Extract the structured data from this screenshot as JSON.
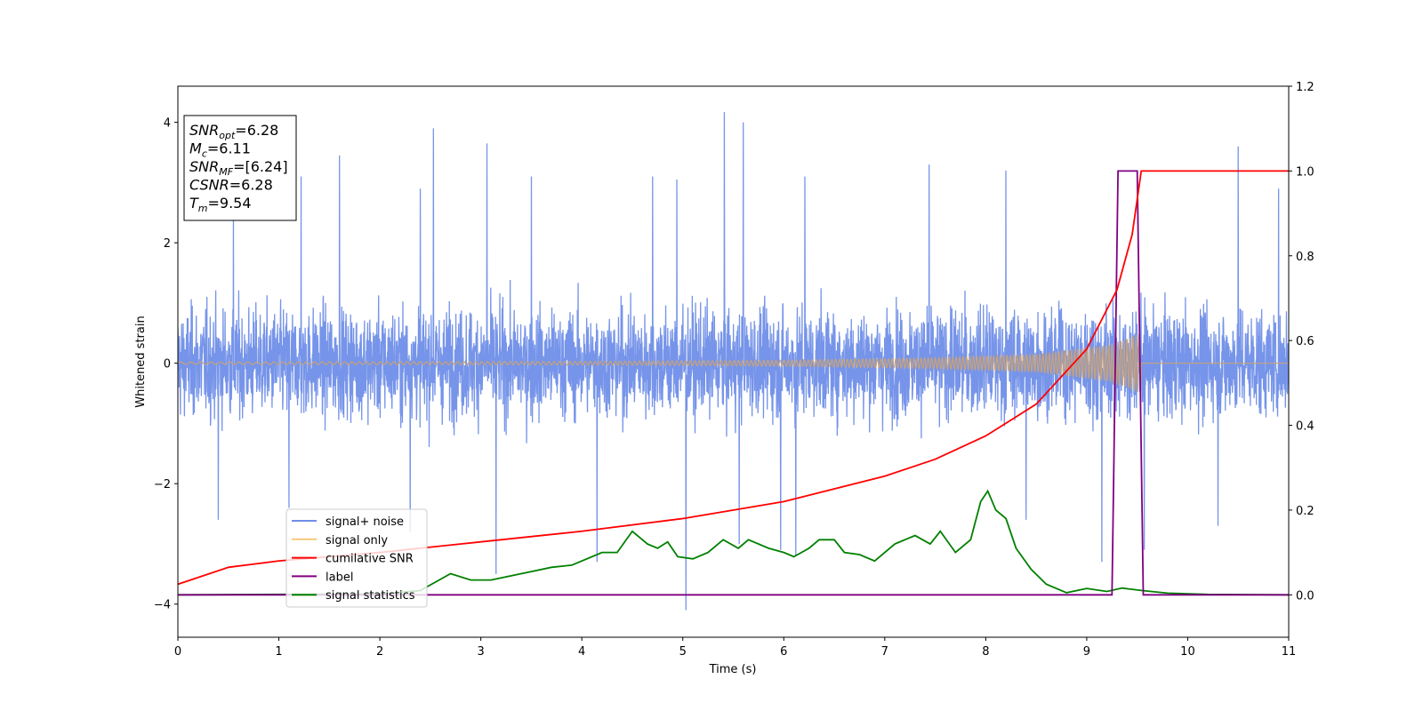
{
  "chart_data": {
    "type": "line",
    "xlabel": "Time (s)",
    "ylabel": "Whitened strain",
    "xlim": [
      0,
      11
    ],
    "ylim_left": [
      -4.55,
      4.6
    ],
    "ylim_right": [
      -0.1,
      1.2
    ],
    "x_ticks": [
      "0",
      "1",
      "2",
      "3",
      "4",
      "5",
      "6",
      "7",
      "8",
      "9",
      "10",
      "11"
    ],
    "y_ticks_left": [
      "−4",
      "−2",
      "0",
      "2",
      "4"
    ],
    "y_ticks_left_values": [
      -4,
      -2,
      0,
      2,
      4
    ],
    "y_ticks_right": [
      "0.0",
      "0.2",
      "0.4",
      "0.6",
      "0.8",
      "1.0",
      "1.2"
    ],
    "y_ticks_right_values": [
      0.0,
      0.2,
      0.4,
      0.6,
      0.8,
      1.0,
      1.2
    ],
    "info_box": {
      "lines": [
        {
          "sym": "SNR",
          "sub": "opt",
          "val": "=6.28"
        },
        {
          "sym": "M",
          "sub": "c",
          "val": "=6.11"
        },
        {
          "sym": "SNR",
          "sub": "MF",
          "val": "=[6.24]"
        },
        {
          "sym": "CSNR",
          "sub": "",
          "val": "=6.28"
        },
        {
          "sym": "T",
          "sub": "m",
          "val": "=9.54"
        }
      ]
    },
    "legend": {
      "placement": "lower-left",
      "entries": [
        {
          "label": "signal+ noise",
          "color": "#6f8ee8"
        },
        {
          "label": "signal only",
          "color": "#f5c87a"
        },
        {
          "label": "cumilative SNR",
          "color": "#ff0000"
        },
        {
          "label": "label",
          "color": "#800080"
        },
        {
          "label": "signal statistics",
          "color": "#008000"
        }
      ]
    },
    "series": [
      {
        "name": "signal+ noise",
        "axis": "left",
        "color": "#6f8ee8",
        "noise_std": 0.8,
        "peaks": [
          [
            0.55,
            2.5
          ],
          [
            1.22,
            3.1
          ],
          [
            1.6,
            3.45
          ],
          [
            2.4,
            2.9
          ],
          [
            2.53,
            3.9
          ],
          [
            3.06,
            3.65
          ],
          [
            3.5,
            3.1
          ],
          [
            4.7,
            3.1
          ],
          [
            4.94,
            3.05
          ],
          [
            5.41,
            4.17
          ],
          [
            5.6,
            4.0
          ],
          [
            6.21,
            3.1
          ],
          [
            7.44,
            3.3
          ],
          [
            8.2,
            3.2
          ],
          [
            9.57,
            3.2
          ],
          [
            10.5,
            3.6
          ],
          [
            10.9,
            2.9
          ]
        ],
        "troughs": [
          [
            0.4,
            -2.6
          ],
          [
            1.1,
            -2.4
          ],
          [
            2.3,
            -2.8
          ],
          [
            3.15,
            -3.5
          ],
          [
            4.15,
            -3.3
          ],
          [
            5.03,
            -4.1
          ],
          [
            5.56,
            -3.0
          ],
          [
            5.97,
            -3.1
          ],
          [
            6.12,
            -3.2
          ],
          [
            8.4,
            -2.6
          ],
          [
            9.15,
            -3.3
          ],
          [
            9.57,
            -3.1
          ],
          [
            10.3,
            -2.7
          ]
        ]
      },
      {
        "name": "signal only",
        "axis": "left",
        "color": "#c8a27a",
        "chirp_end": 9.54,
        "amplitude_points": [
          [
            0,
            0.02
          ],
          [
            4,
            0.03
          ],
          [
            6,
            0.05
          ],
          [
            7.5,
            0.09
          ],
          [
            8.5,
            0.15
          ],
          [
            9.2,
            0.3
          ],
          [
            9.54,
            0.5
          ]
        ]
      },
      {
        "name": "cumilative SNR",
        "axis": "right",
        "color": "#ff0000",
        "points": [
          [
            0,
            0.025
          ],
          [
            0.5,
            0.065
          ],
          [
            1,
            0.08
          ],
          [
            2,
            0.1
          ],
          [
            3,
            0.125
          ],
          [
            4,
            0.15
          ],
          [
            5,
            0.18
          ],
          [
            6,
            0.22
          ],
          [
            7,
            0.28
          ],
          [
            7.5,
            0.32
          ],
          [
            8,
            0.375
          ],
          [
            8.5,
            0.45
          ],
          [
            9,
            0.58
          ],
          [
            9.3,
            0.72
          ],
          [
            9.45,
            0.85
          ],
          [
            9.54,
            1.0
          ],
          [
            11,
            1.0
          ]
        ]
      },
      {
        "name": "label",
        "axis": "right",
        "color": "#800080",
        "points": [
          [
            0,
            0.0
          ],
          [
            9.25,
            0.0
          ],
          [
            9.31,
            1.0
          ],
          [
            9.5,
            1.0
          ],
          [
            9.56,
            0.0
          ],
          [
            11,
            0.0
          ]
        ]
      },
      {
        "name": "signal statistics",
        "axis": "right",
        "color": "#008000",
        "points": [
          [
            0,
            0.0
          ],
          [
            2.0,
            0.002
          ],
          [
            2.4,
            0.01
          ],
          [
            2.55,
            0.03
          ],
          [
            2.7,
            0.05
          ],
          [
            2.9,
            0.035
          ],
          [
            3.1,
            0.035
          ],
          [
            3.3,
            0.045
          ],
          [
            3.5,
            0.055
          ],
          [
            3.7,
            0.065
          ],
          [
            3.9,
            0.07
          ],
          [
            4.0,
            0.08
          ],
          [
            4.2,
            0.1
          ],
          [
            4.35,
            0.1
          ],
          [
            4.5,
            0.15
          ],
          [
            4.65,
            0.12
          ],
          [
            4.75,
            0.11
          ],
          [
            4.85,
            0.125
          ],
          [
            4.95,
            0.09
          ],
          [
            5.1,
            0.085
          ],
          [
            5.25,
            0.1
          ],
          [
            5.4,
            0.13
          ],
          [
            5.55,
            0.11
          ],
          [
            5.65,
            0.13
          ],
          [
            5.85,
            0.11
          ],
          [
            6.0,
            0.1
          ],
          [
            6.1,
            0.09
          ],
          [
            6.25,
            0.11
          ],
          [
            6.35,
            0.13
          ],
          [
            6.5,
            0.13
          ],
          [
            6.6,
            0.1
          ],
          [
            6.75,
            0.095
          ],
          [
            6.9,
            0.08
          ],
          [
            7.1,
            0.12
          ],
          [
            7.3,
            0.14
          ],
          [
            7.45,
            0.12
          ],
          [
            7.55,
            0.15
          ],
          [
            7.7,
            0.1
          ],
          [
            7.85,
            0.13
          ],
          [
            7.95,
            0.22
          ],
          [
            8.02,
            0.245
          ],
          [
            8.1,
            0.2
          ],
          [
            8.2,
            0.18
          ],
          [
            8.3,
            0.11
          ],
          [
            8.45,
            0.06
          ],
          [
            8.6,
            0.025
          ],
          [
            8.8,
            0.005
          ],
          [
            9.0,
            0.015
          ],
          [
            9.2,
            0.008
          ],
          [
            9.35,
            0.016
          ],
          [
            9.55,
            0.01
          ],
          [
            9.8,
            0.004
          ],
          [
            10.2,
            0.001
          ],
          [
            11,
            0.0
          ]
        ]
      }
    ]
  }
}
